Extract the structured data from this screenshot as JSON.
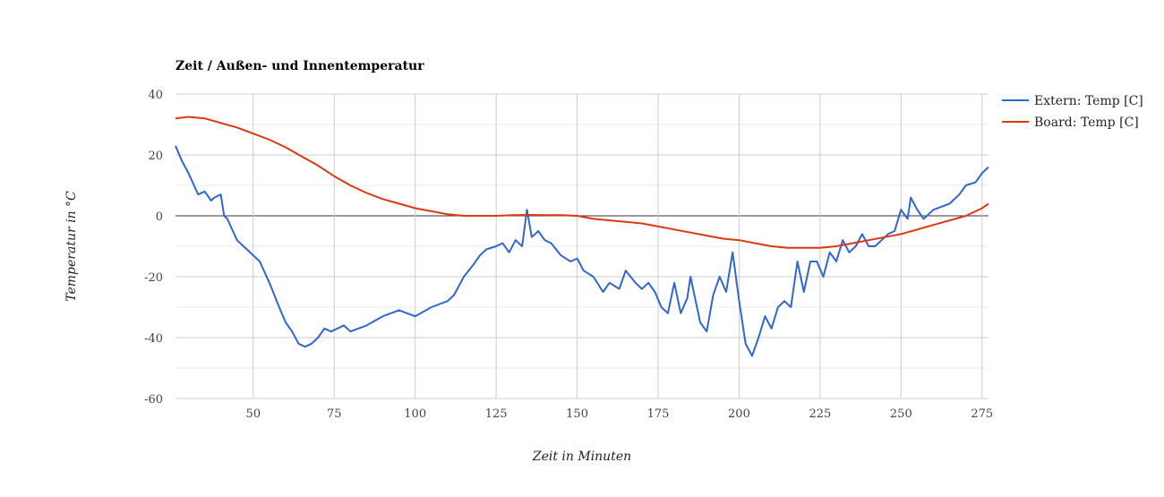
{
  "chart_data": {
    "type": "line",
    "title": "Zeit / Außen- und Innentemperatur",
    "xlabel": "Zeit in Minuten",
    "ylabel": "Temperatur in °C",
    "xlim": [
      26,
      277
    ],
    "ylim": [
      -60,
      40
    ],
    "x_ticks": [
      50,
      75,
      100,
      125,
      150,
      175,
      200,
      225,
      250,
      275
    ],
    "y_ticks": [
      -60,
      -40,
      -20,
      0,
      20,
      40
    ],
    "x_tick_labels": [
      "50",
      "75",
      "100",
      "125",
      "150",
      "175",
      "200",
      "225",
      "250",
      "275"
    ],
    "y_tick_labels": [
      "-60",
      "-40",
      "-20",
      "0",
      "20",
      "40"
    ],
    "grid": true,
    "legend_position": "top-right",
    "series": [
      {
        "name": "Extern: Temp [C]",
        "color": "#3366cc",
        "x": [
          26,
          28,
          30,
          33,
          35,
          37,
          38,
          40,
          41,
          42,
          45,
          48,
          52,
          55,
          58,
          60,
          62,
          64,
          66,
          68,
          70,
          72,
          74,
          76,
          78,
          80,
          85,
          90,
          95,
          100,
          105,
          110,
          112,
          115,
          118,
          120,
          122,
          125,
          127,
          129,
          131,
          133,
          134.5,
          136,
          138,
          140,
          142,
          145,
          148,
          150,
          152,
          155,
          158,
          160,
          163,
          165,
          168,
          170,
          172,
          174,
          176,
          178,
          180,
          182,
          184,
          185,
          188,
          190,
          192,
          194,
          196,
          198,
          200,
          202,
          204,
          206,
          208,
          210,
          212,
          214,
          216,
          218,
          220,
          222,
          224,
          226,
          228,
          230,
          232,
          234,
          236,
          238,
          240,
          242,
          244,
          246,
          248,
          250,
          252,
          253,
          255,
          257,
          260,
          265,
          268,
          270,
          273,
          275,
          277
        ],
        "y": [
          23,
          18,
          14,
          7,
          8,
          5,
          6,
          7,
          0,
          -1,
          -8,
          -11,
          -15,
          -22,
          -30,
          -35,
          -38,
          -42,
          -43,
          -42,
          -40,
          -37,
          -38,
          -37,
          -36,
          -38,
          -36,
          -33,
          -31,
          -33,
          -30,
          -28,
          -26,
          -20,
          -16,
          -13,
          -11,
          -10,
          -9,
          -12,
          -8,
          -10,
          2,
          -7,
          -5,
          -8,
          -9,
          -13,
          -15,
          -14,
          -18,
          -20,
          -25,
          -22,
          -24,
          -18,
          -22,
          -24,
          -22,
          -25,
          -30,
          -32,
          -22,
          -32,
          -27,
          -20,
          -35,
          -38,
          -26,
          -20,
          -25,
          -12,
          -28,
          -42,
          -46,
          -40,
          -33,
          -37,
          -30,
          -28,
          -30,
          -15,
          -25,
          -15,
          -15,
          -20,
          -12,
          -15,
          -8,
          -12,
          -10,
          -6,
          -10,
          -10,
          -8,
          -6,
          -5,
          2,
          -1,
          6,
          2,
          -1,
          2,
          4,
          7,
          10,
          11,
          14,
          16
        ]
      },
      {
        "name": "Board: Temp [C]",
        "color": "#dc3912",
        "x": [
          26,
          30,
          35,
          40,
          45,
          50,
          55,
          60,
          65,
          70,
          75,
          80,
          85,
          90,
          95,
          100,
          105,
          110,
          115,
          120,
          125,
          130,
          135,
          140,
          145,
          150,
          155,
          160,
          165,
          170,
          175,
          180,
          185,
          190,
          195,
          200,
          205,
          210,
          215,
          220,
          225,
          230,
          235,
          240,
          245,
          250,
          255,
          260,
          265,
          270,
          275,
          277
        ],
        "y": [
          32,
          32.5,
          32,
          30.5,
          29,
          27,
          25,
          22.5,
          19.5,
          16.5,
          13,
          10,
          7.5,
          5.5,
          4,
          2.5,
          1.5,
          0.5,
          0,
          0,
          0,
          0.2,
          0.3,
          0.2,
          0.2,
          0,
          -1,
          -1.5,
          -2,
          -2.5,
          -3.5,
          -4.5,
          -5.5,
          -6.5,
          -7.5,
          -8,
          -9,
          -10,
          -10.5,
          -10.5,
          -10.5,
          -10,
          -9,
          -8,
          -7,
          -6,
          -4.5,
          -3,
          -1.5,
          0,
          2.5,
          4
        ]
      }
    ]
  }
}
